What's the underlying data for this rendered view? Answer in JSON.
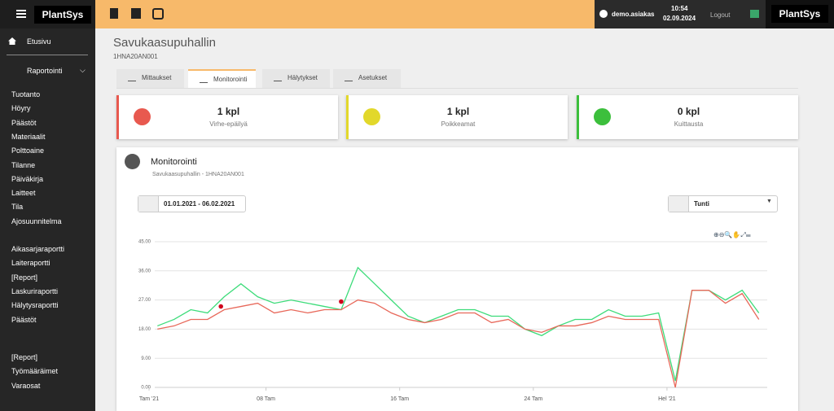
{
  "header": {
    "logo": "PlantSys",
    "user": "demo.asiakas",
    "time": "10:54",
    "date": "02.09.2024",
    "logout": "Logout",
    "logo_right": "PlantSys"
  },
  "sidebar": {
    "home": "Etusivu",
    "section": "Raportointi",
    "groups": [
      [
        "Tuotanto",
        "Höyry",
        "Päästöt",
        "Materiaalit",
        "Polttoaine",
        "Tilanne",
        "Päiväkirja",
        "Laitteet",
        "Tila",
        "Ajosuunnitelma"
      ],
      [
        "Aikasarjaraportti",
        "Laiteraportti",
        "[Report]",
        "Laskuriraportti",
        "Hälytysraportti",
        "Päästöt"
      ],
      [
        "[Report]",
        "Työmääräimet",
        "Varaosat"
      ]
    ]
  },
  "page": {
    "title": "Savukaasupuhallin",
    "subtitle": "1HNA20AN001"
  },
  "tabs": [
    "Mittaukset",
    "Monitorointi",
    "Hälytykset",
    "Asetukset"
  ],
  "cards": [
    {
      "value": "1 kpl",
      "label": "Virhe-epäilyä"
    },
    {
      "value": "1 kpl",
      "label": "Poikkeamat"
    },
    {
      "value": "0 kpl",
      "label": "Kuittausta"
    }
  ],
  "panel": {
    "title": "Monitorointi",
    "subtitle": "Savukaasupuhallin - 1HNA20AN001",
    "date_range": "01.01.2021 - 06.02.2021",
    "interval": "Tunti"
  },
  "chart_data": {
    "type": "line",
    "x": [
      0.5,
      1.5,
      2.5,
      3.5,
      4.5,
      5.5,
      6.5,
      7.5,
      8.5,
      9.5,
      10.5,
      11.5,
      12.5,
      13.5,
      14.5,
      15.5,
      16.5,
      17.5,
      18.5,
      19.5,
      20.5,
      21.5,
      22.5,
      23.5,
      24.5,
      25.5,
      26.5,
      27.5,
      28.5,
      29.5,
      30.5,
      31.5,
      32.5,
      33.5,
      34.5,
      35.5,
      36.5
    ],
    "series": [
      {
        "color": "#3ddc7a",
        "values": [
          19,
          21,
          24,
          23,
          28,
          32,
          28,
          26,
          27,
          26,
          25,
          24,
          37,
          32,
          27,
          22,
          20,
          22,
          24,
          24,
          22,
          22,
          18,
          16,
          19,
          21,
          21,
          24,
          22,
          22,
          23,
          2,
          30,
          30,
          27,
          30,
          23
        ]
      },
      {
        "color": "#e8685a",
        "values": [
          18,
          19,
          21,
          21,
          24,
          25,
          26,
          23,
          24,
          23,
          24,
          24,
          27,
          26,
          23,
          21,
          20,
          21,
          23,
          23,
          20,
          21,
          18,
          17,
          19,
          19,
          20,
          22,
          21,
          21,
          21,
          0,
          30,
          30,
          26,
          29,
          21
        ]
      }
    ],
    "markers": {
      "color": "#d0021b",
      "x": [
        4.3,
        11.5
      ],
      "y": [
        25,
        26.5
      ]
    },
    "xlim": [
      0,
      37
    ],
    "xticks": [
      {
        "value": 0,
        "label": "Tam '21"
      },
      {
        "value": 7,
        "label": "08 Tam"
      },
      {
        "value": 15,
        "label": "16 Tam"
      },
      {
        "value": 23,
        "label": "24 Tam"
      },
      {
        "value": 31,
        "label": "Hel '21"
      }
    ],
    "ylim": [
      0,
      45
    ],
    "yticks": [
      {
        "value": 0,
        "label": "0.00"
      },
      {
        "value": 9,
        "label": "9.00"
      },
      {
        "value": 18,
        "label": "18.00"
      },
      {
        "value": 27,
        "label": "27.00"
      },
      {
        "value": 36,
        "label": "36.00"
      },
      {
        "value": 45,
        "label": "45.00"
      }
    ],
    "grid": true
  }
}
